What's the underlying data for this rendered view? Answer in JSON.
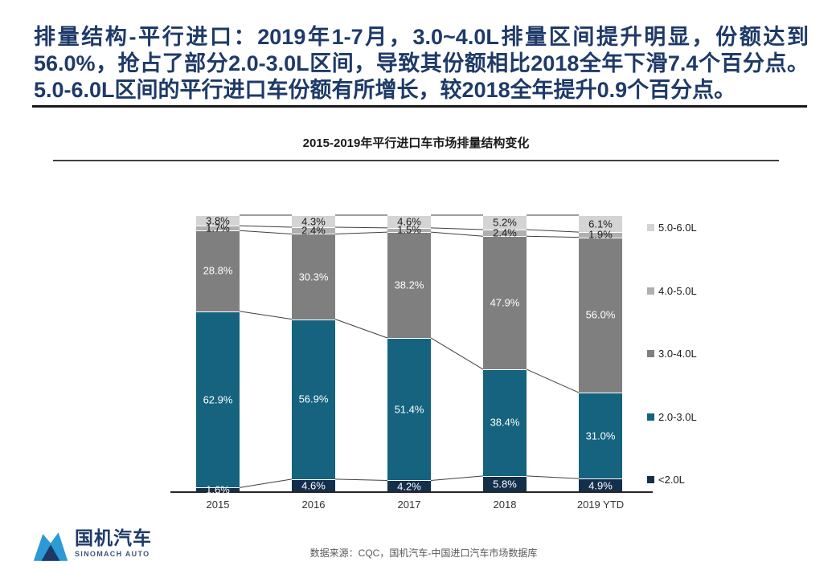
{
  "slide": {
    "headline": "排量结构-平行进口：2019年1-7月，3.0~4.0L排量区间提升明显，份额达到56.0%，抢占了部分2.0-3.0L区间，导致其份额相比2018全年下滑7.4个百分点。5.0-6.0L区间的平行进口车份额有所增长，较2018全年提升0.9个百分点。",
    "source": "数据来源：CQC，国机汽车-中国进口汽车市场数据库",
    "logo": {
      "name": "国机汽车",
      "subtitle": "SINOMACH AUTO"
    }
  },
  "chart_data": {
    "type": "bar",
    "stacking": "percent",
    "title": "2015-2019年平行进口车市场排量结构变化",
    "categories": [
      "2015",
      "2016",
      "2017",
      "2018",
      "2019 YTD"
    ],
    "series": [
      {
        "name": "<2.0L",
        "color": "#142F4C",
        "label_color": "#ffffff",
        "values": [
          1.6,
          4.6,
          4.2,
          5.8,
          4.9
        ]
      },
      {
        "name": "2.0-3.0L",
        "color": "#15637E",
        "label_color": "#ffffff",
        "values": [
          62.9,
          56.9,
          51.4,
          38.4,
          31.0
        ]
      },
      {
        "name": "3.0-4.0L",
        "color": "#7F7F7F",
        "label_color": "#ffffff",
        "values": [
          28.8,
          30.3,
          38.2,
          47.9,
          56.0
        ]
      },
      {
        "name": "4.0-5.0L",
        "color": "#AFAFAF",
        "label_color": "#1a1a1a",
        "values": [
          1.7,
          2.4,
          1.5,
          2.4,
          1.9
        ]
      },
      {
        "name": "5.0-6.0L",
        "color": "#D5D3D3",
        "label_color": "#1a1a1a",
        "values": [
          3.8,
          4.3,
          4.6,
          5.2,
          6.1
        ]
      }
    ],
    "value_suffix": "%",
    "legend_position": "right",
    "legend_items_top_to_bottom": [
      "5.0-6.0L",
      "4.0-5.0L",
      "3.0-4.0L",
      "2.0-3.0L",
      "<2.0L"
    ],
    "connector_lines": true,
    "grid": false,
    "ylim": [
      0,
      100
    ],
    "connector_color": "#404040",
    "axis_color": "#262626"
  }
}
